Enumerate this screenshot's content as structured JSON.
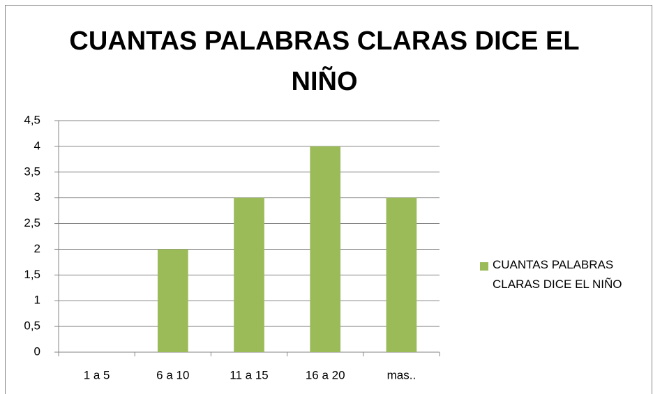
{
  "chart_data": {
    "type": "bar",
    "title": "CUANTAS PALABRAS CLARAS DICE EL NIÑO",
    "categories": [
      "1 a 5",
      "6 a 10",
      "11 a 15",
      "16 a 20",
      "mas.."
    ],
    "series": [
      {
        "name": "CUANTAS PALABRAS CLARAS DICE EL NIÑO",
        "color": "#9bbb59",
        "values": [
          0,
          2,
          3,
          4,
          3
        ]
      }
    ],
    "ylim": [
      0,
      4.5
    ],
    "yticks": [
      0,
      {
        "value": 0.5,
        "label": "0,5"
      },
      1,
      {
        "value": 1.5,
        "label": "1,5"
      },
      2,
      {
        "value": 2.5,
        "label": "2,5"
      },
      3,
      {
        "value": 3.5,
        "label": "3,5"
      },
      4,
      {
        "value": 4.5,
        "label": "4,5"
      }
    ],
    "grid": true,
    "legend": "right"
  }
}
